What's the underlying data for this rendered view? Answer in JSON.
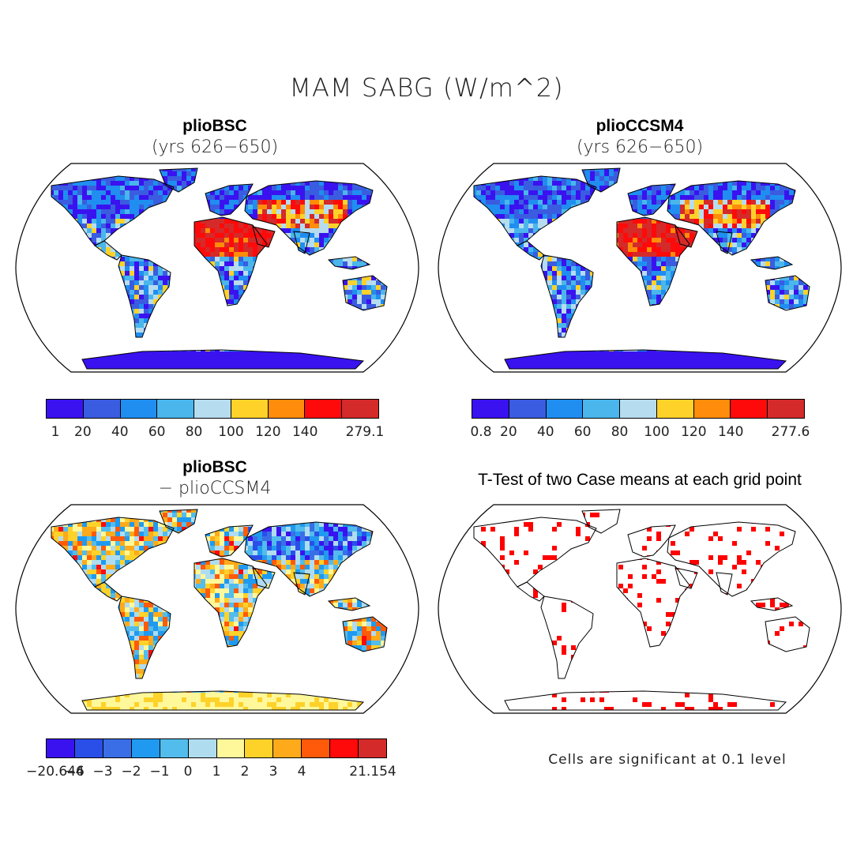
{
  "title": "MAM SABG (W/m^2)",
  "panels": [
    {
      "id": "plioBSC",
      "title": "plioBSC",
      "subtitle": "(yrs 626−650)"
    },
    {
      "id": "plioCCSM4",
      "title": "plioCCSM4",
      "subtitle": "(yrs 626−650)"
    },
    {
      "id": "diff",
      "title": "plioBSC",
      "subtitle": "− plioCCSM4"
    },
    {
      "id": "ttest",
      "title": "T-Test of two Case means at each grid point",
      "subtitle": ""
    }
  ],
  "colorbars": {
    "bsc": {
      "colors": [
        "#3a12f0",
        "#3a5ce0",
        "#1f8ef0",
        "#4ab6ec",
        "#b6dcf0",
        "#ffd22a",
        "#ff8c0a",
        "#ff0a0a",
        "#d42a2a"
      ],
      "labels": [
        "1",
        "20",
        "40",
        "60",
        "80",
        "100",
        "120",
        "140",
        "279.1"
      ]
    },
    "ccsm4": {
      "colors": [
        "#3a12f0",
        "#3a5ce0",
        "#1f8ef0",
        "#4ab6ec",
        "#b6dcf0",
        "#ffd22a",
        "#ff8c0a",
        "#ff0a0a",
        "#d42a2a"
      ],
      "labels": [
        "0.8",
        "20",
        "40",
        "60",
        "80",
        "100",
        "120",
        "140",
        "277.6"
      ]
    },
    "diff": {
      "colors": [
        "#3a12f0",
        "#2a4fe8",
        "#3a6ee6",
        "#1f9af0",
        "#52bcec",
        "#b0dcf0",
        "#fff89a",
        "#ffd22a",
        "#ffaa1a",
        "#ff5a0a",
        "#ff0a0a",
        "#d42a2a"
      ],
      "labels": [
        "−20.646",
        "−4",
        "−3",
        "−2",
        "−1",
        "0",
        "1",
        "2",
        "3",
        "4",
        "21.154"
      ]
    }
  },
  "ttest_note": "Cells are significant at 0.1 level",
  "significance_color": "#ff0000"
}
